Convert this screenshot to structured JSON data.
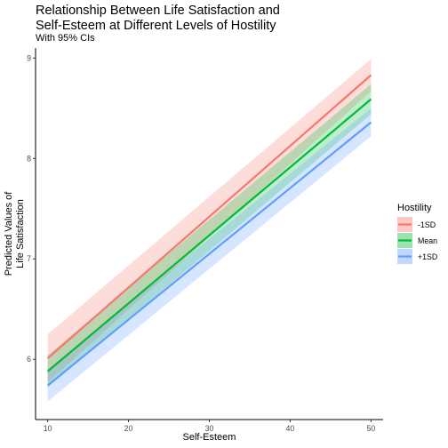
{
  "chart_data": {
    "type": "line",
    "title_line1": "Relationship Between Life Satisfaction and",
    "title_line2": "Self-Esteem at Different Levels of Hostility",
    "subtitle": "With 95% CIs",
    "xlabel": "Self-Esteem",
    "ylabel_line1": "Predicted Values of",
    "ylabel_line2": "Life Satisfaction",
    "xlim": [
      8.5,
      51.5
    ],
    "ylim": [
      5.4,
      9.1
    ],
    "x_ticks": [
      10,
      20,
      30,
      40,
      50
    ],
    "y_ticks": [
      6,
      7,
      8,
      9
    ],
    "grid": false,
    "legend": {
      "title": "Hostility",
      "placement": "right"
    },
    "series": [
      {
        "name": "-1SD",
        "color": "#F8766D",
        "x": [
          10,
          50
        ],
        "y": [
          6.01,
          8.83
        ],
        "ci_lower": [
          5.77,
          8.67
        ],
        "ci_upper": [
          6.25,
          8.99
        ]
      },
      {
        "name": "Mean",
        "color": "#00BA38",
        "x": [
          10,
          50
        ],
        "y": [
          5.88,
          8.59
        ],
        "ci_lower": [
          5.72,
          8.44
        ],
        "ci_upper": [
          6.04,
          8.74
        ]
      },
      {
        "name": "+1SD",
        "color": "#619CFF",
        "x": [
          10,
          50
        ],
        "y": [
          5.74,
          8.36
        ],
        "ci_lower": [
          5.58,
          8.22
        ],
        "ci_upper": [
          5.9,
          8.5
        ]
      }
    ]
  }
}
